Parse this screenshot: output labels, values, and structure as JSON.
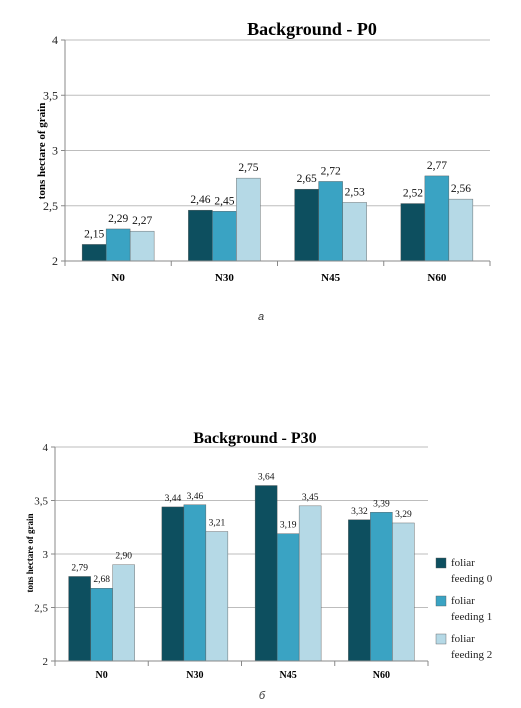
{
  "colors": {
    "foliar_feeding_0": "#0d4f5f",
    "foliar_feeding_1": "#3aa3c3",
    "foliar_feeding_2": "#b5d9e6",
    "axis": "#888888",
    "grid": "#bdbdbd"
  },
  "chart_data": [
    {
      "type": "bar",
      "title": "Background  - P0",
      "ylabel": "tons hectare of grain",
      "xlabel": "",
      "ylim": [
        2,
        4
      ],
      "yticks": [
        "2",
        "2,5",
        "3",
        "3,5",
        "4"
      ],
      "grid": true,
      "legend": "none",
      "categories": [
        "N0",
        "N30",
        "N45",
        "N60"
      ],
      "series": [
        {
          "values": [
            2.15,
            2.46,
            2.65,
            2.52
          ],
          "labels": [
            "2,15",
            "2,46",
            "2,65",
            "2,52"
          ]
        },
        {
          "values": [
            2.29,
            2.45,
            2.72,
            2.77
          ],
          "labels": [
            "2,29",
            "2,45",
            "2,72",
            "2,77"
          ]
        },
        {
          "values": [
            2.27,
            2.75,
            2.53,
            2.56
          ],
          "labels": [
            "2,27",
            "2,75",
            "2,53",
            "2,56"
          ]
        }
      ],
      "panel_label": "a"
    },
    {
      "type": "bar",
      "title": "Background  - P30",
      "ylabel": "tons hectare of grain",
      "xlabel": "",
      "ylim": [
        2,
        4
      ],
      "yticks": [
        "2",
        "2,5",
        "3",
        "3,5",
        "4"
      ],
      "grid": true,
      "legend": "right",
      "categories": [
        "N0",
        "N30",
        "N45",
        "N60"
      ],
      "series": [
        {
          "name": "foliar feeding 0",
          "values": [
            2.79,
            3.44,
            3.64,
            3.32
          ],
          "labels": [
            "2,79",
            "3,44",
            "3,64",
            "3,32"
          ]
        },
        {
          "name": "foliar feeding 1",
          "values": [
            2.68,
            3.46,
            3.19,
            3.39
          ],
          "labels": [
            "2,68",
            "3,46",
            "3,19",
            "3,39"
          ]
        },
        {
          "name": "foliar feeding 2",
          "values": [
            2.9,
            3.21,
            3.45,
            3.29
          ],
          "labels": [
            "2,90",
            "3,21",
            "3,45",
            "3,29"
          ]
        }
      ],
      "panel_label": "б"
    }
  ]
}
